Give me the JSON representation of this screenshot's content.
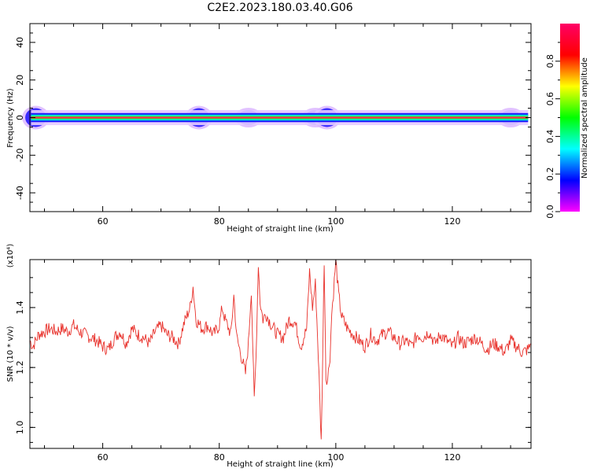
{
  "page": {
    "title": "C2E2.2023.180.03.40.G06"
  },
  "chart_data": [
    {
      "type": "heatmap",
      "title": "C2E2.2023.180.03.40.G06",
      "xlabel": "Height of straight line (km)",
      "ylabel": "Frequency (Hz)",
      "xlim": [
        47.5,
        133.5
      ],
      "ylim": [
        -50,
        50
      ],
      "xticks": [
        60,
        80,
        100,
        120
      ],
      "yticks": [
        -40,
        -20,
        0,
        20,
        40
      ],
      "xtick_labels": [
        "60",
        "80",
        "100",
        "120"
      ],
      "ytick_labels": [
        "-40",
        "-20",
        "0",
        "20",
        "40"
      ],
      "colorbar": {
        "label": "Normalized spectral amplitude",
        "range": [
          0,
          1
        ],
        "ticks": [
          0.0,
          0.2,
          0.4,
          0.6,
          0.8
        ],
        "tick_labels": [
          "0.0",
          "0.2",
          "0.4",
          "0.6",
          "0.8"
        ],
        "colormap": [
          "#ff00ff",
          "#0000ff",
          "#00ffff",
          "#00ff00",
          "#ffff00",
          "#ff0000",
          "#ff0066"
        ]
      },
      "band": {
        "center_frequency": 0,
        "core_halfwidth": 1.0,
        "spread_halfwidth": 4.0
      },
      "spread_bursts": [
        {
          "x": 48.5,
          "halfwidth": 5
        },
        {
          "x": 76.5,
          "halfwidth": 5
        },
        {
          "x": 85.0,
          "halfwidth": 4
        },
        {
          "x": 96.5,
          "halfwidth": 4
        },
        {
          "x": 98.5,
          "halfwidth": 5
        },
        {
          "x": 130.0,
          "halfwidth": 4
        }
      ]
    },
    {
      "type": "line",
      "xlabel": "Height of straight line (km)",
      "ylabel": "SNR (10 * v/v)",
      "scale_label": "(x10⁴)",
      "xlim": [
        47.5,
        133.5
      ],
      "ylim": [
        0.93,
        1.56
      ],
      "xticks": [
        60,
        80,
        100,
        120
      ],
      "yticks": [
        1.0,
        1.2,
        1.4
      ],
      "xtick_labels": [
        "60",
        "80",
        "100",
        "120"
      ],
      "ytick_labels": [
        "1.0",
        "1.2",
        "1.4"
      ],
      "line_color": "#e8302a",
      "series": [
        {
          "x": [
            47.5,
            48,
            49,
            50,
            51,
            52,
            53,
            54,
            55,
            56,
            57,
            58,
            59,
            60,
            61,
            62,
            63,
            64,
            65,
            66,
            67,
            68,
            69,
            70,
            71,
            72,
            73,
            74,
            75,
            75.5,
            76,
            77,
            78,
            79,
            80,
            80.5,
            81,
            82,
            82.5,
            83,
            84,
            84.5,
            85,
            85.5,
            86,
            86.3,
            86.7,
            87,
            87.5,
            88,
            89,
            90,
            91,
            92,
            93,
            94,
            95,
            95.5,
            96,
            96.5,
            97,
            97.5,
            97.8,
            98,
            98.3,
            98.6,
            99,
            99.3,
            99.6,
            100,
            100.5,
            101,
            102,
            103,
            104,
            105,
            106,
            107,
            108,
            109,
            110,
            111,
            112,
            113,
            114,
            115,
            116,
            117,
            118,
            119,
            120,
            121,
            122,
            123,
            124,
            125,
            126,
            127,
            128,
            129,
            130,
            131,
            132,
            133,
            133.5
          ],
          "y": [
            1.29,
            1.27,
            1.31,
            1.32,
            1.33,
            1.32,
            1.33,
            1.32,
            1.34,
            1.32,
            1.31,
            1.3,
            1.29,
            1.27,
            1.26,
            1.3,
            1.32,
            1.28,
            1.33,
            1.31,
            1.3,
            1.28,
            1.32,
            1.34,
            1.31,
            1.3,
            1.28,
            1.35,
            1.4,
            1.47,
            1.36,
            1.33,
            1.34,
            1.31,
            1.34,
            1.4,
            1.36,
            1.31,
            1.44,
            1.3,
            1.22,
            1.18,
            1.28,
            1.46,
            1.09,
            1.23,
            1.55,
            1.42,
            1.36,
            1.38,
            1.34,
            1.31,
            1.3,
            1.36,
            1.35,
            1.27,
            1.33,
            1.52,
            1.4,
            1.48,
            1.24,
            0.95,
            1.3,
            1.56,
            1.17,
            1.16,
            1.24,
            1.38,
            1.45,
            1.56,
            1.44,
            1.37,
            1.33,
            1.31,
            1.29,
            1.27,
            1.31,
            1.29,
            1.31,
            1.32,
            1.3,
            1.28,
            1.29,
            1.27,
            1.31,
            1.3,
            1.32,
            1.28,
            1.31,
            1.29,
            1.27,
            1.3,
            1.28,
            1.29,
            1.3,
            1.28,
            1.26,
            1.28,
            1.27,
            1.25,
            1.29,
            1.27,
            1.25,
            1.26,
            1.28
          ]
        }
      ]
    }
  ]
}
